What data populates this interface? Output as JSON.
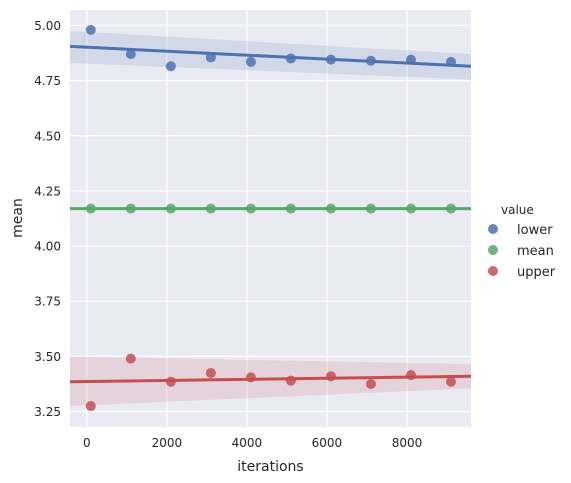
{
  "chart_data": {
    "type": "scatter",
    "title": "",
    "xlabel": "iterations",
    "ylabel": "mean",
    "xlim": [
      -420,
      9600
    ],
    "ylim": [
      3.18,
      5.07
    ],
    "xticks": [
      0,
      2000,
      4000,
      6000,
      8000
    ],
    "xtick_labels": [
      "0",
      "2000",
      "4000",
      "6000",
      "8000"
    ],
    "yticks": [
      3.25,
      3.5,
      3.75,
      4.0,
      4.25,
      4.5,
      4.75,
      5.0
    ],
    "ytick_labels": [
      "3.25",
      "3.50",
      "3.75",
      "4.00",
      "4.25",
      "4.50",
      "4.75",
      "5.00"
    ],
    "grid": true,
    "legend": {
      "title": "value",
      "placement": "right"
    },
    "x": [
      100,
      1100,
      2100,
      3100,
      4100,
      5100,
      6100,
      7100,
      8100,
      9100
    ],
    "series": [
      {
        "name": "lower",
        "color": "#4c72b0",
        "values": [
          4.98,
          4.87,
          4.815,
          4.855,
          4.835,
          4.85,
          4.845,
          4.84,
          4.845,
          4.835
        ],
        "fit": {
          "start": 4.905,
          "end": 4.815
        },
        "ci": {
          "start_low": 4.83,
          "start_high": 4.975,
          "end_low": 4.755,
          "end_high": 4.87
        }
      },
      {
        "name": "mean",
        "color": "#55a868",
        "values": [
          4.17,
          4.17,
          4.17,
          4.17,
          4.17,
          4.17,
          4.17,
          4.17,
          4.17,
          4.17
        ],
        "fit": {
          "start": 4.17,
          "end": 4.17
        },
        "ci": {
          "start_low": 4.165,
          "start_high": 4.175,
          "end_low": 4.165,
          "end_high": 4.175
        }
      },
      {
        "name": "upper",
        "color": "#c44e52",
        "values": [
          3.275,
          3.49,
          3.385,
          3.425,
          3.405,
          3.39,
          3.41,
          3.375,
          3.415,
          3.385
        ],
        "fit": {
          "start": 3.385,
          "end": 3.41
        },
        "ci": {
          "start_low": 3.275,
          "start_high": 3.5,
          "end_low": 3.355,
          "end_high": 3.465
        }
      }
    ]
  }
}
